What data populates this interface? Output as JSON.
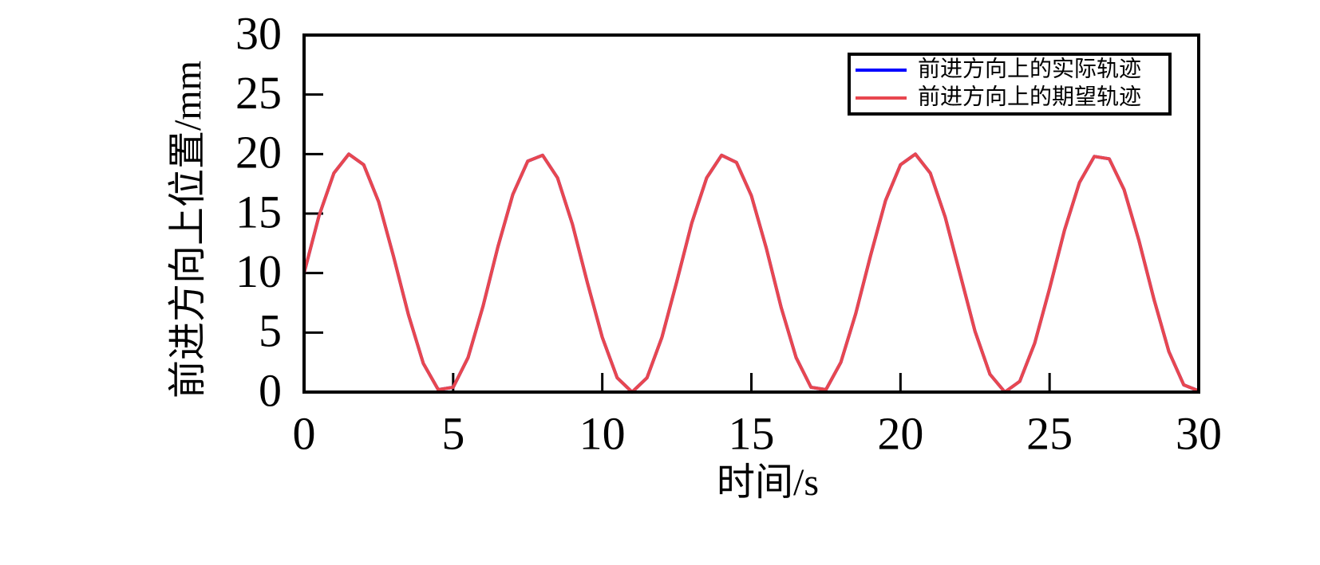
{
  "chart_data": {
    "type": "line",
    "x_label": "时间/s",
    "y_label": "前进方向上位置/mm",
    "x": [
      0,
      0.5,
      1,
      1.5,
      2,
      2.5,
      3,
      3.5,
      4,
      4.5,
      5,
      5.5,
      6,
      6.5,
      7,
      7.5,
      8,
      8.5,
      9,
      9.5,
      10,
      10.5,
      11,
      11.5,
      12,
      12.5,
      13,
      13.5,
      14,
      14.5,
      15,
      15.5,
      16,
      16.5,
      17,
      17.5,
      18,
      18.5,
      19,
      19.5,
      20,
      20.5,
      21,
      21.5,
      22,
      22.5,
      23,
      23.5,
      24,
      24.5,
      25,
      25.5,
      26,
      26.5,
      27,
      27.5,
      28,
      28.5,
      29,
      29.5,
      30
    ],
    "series": [
      {
        "name": "前进方向上的实际轨迹",
        "color": "#0000ff",
        "values": [
          10,
          14.8,
          18.4,
          20,
          19.1,
          16,
          11.4,
          6.5,
          2.4,
          0.2,
          0.4,
          2.9,
          7.2,
          12.2,
          16.6,
          19.4,
          19.9,
          18,
          14.1,
          9.2,
          4.6,
          1.2,
          0,
          1.2,
          4.6,
          9.3,
          14.2,
          18,
          19.9,
          19.3,
          16.5,
          12.1,
          7.1,
          2.9,
          0.4,
          0.2,
          2.5,
          6.6,
          11.5,
          16.1,
          19.1,
          20,
          18.4,
          14.7,
          9.9,
          5.1,
          1.5,
          0,
          0.9,
          4.1,
          8.7,
          13.6,
          17.6,
          19.8,
          19.6,
          17,
          12.7,
          7.8,
          3.4,
          0.6,
          0.1
        ]
      },
      {
        "name": "前进方向上的期望轨迹",
        "color": "#e8474f",
        "values": [
          10,
          14.8,
          18.4,
          20,
          19.1,
          16,
          11.4,
          6.5,
          2.4,
          0.2,
          0.4,
          2.9,
          7.2,
          12.2,
          16.6,
          19.4,
          19.9,
          18,
          14.1,
          9.2,
          4.6,
          1.2,
          0,
          1.2,
          4.6,
          9.3,
          14.2,
          18,
          19.9,
          19.3,
          16.5,
          12.1,
          7.1,
          2.9,
          0.4,
          0.2,
          2.5,
          6.6,
          11.5,
          16.1,
          19.1,
          20,
          18.4,
          14.7,
          9.9,
          5.1,
          1.5,
          0,
          0.9,
          4.1,
          8.7,
          13.6,
          17.6,
          19.8,
          19.6,
          17,
          12.7,
          7.8,
          3.4,
          0.6,
          0.1
        ]
      }
    ],
    "xlim": [
      0,
      30
    ],
    "ylim": [
      0,
      30
    ],
    "xticks": [
      0,
      5,
      10,
      15,
      20,
      25,
      30
    ],
    "yticks": [
      0,
      5,
      10,
      15,
      20,
      25,
      30
    ],
    "grid": false,
    "legend": "upper right"
  }
}
